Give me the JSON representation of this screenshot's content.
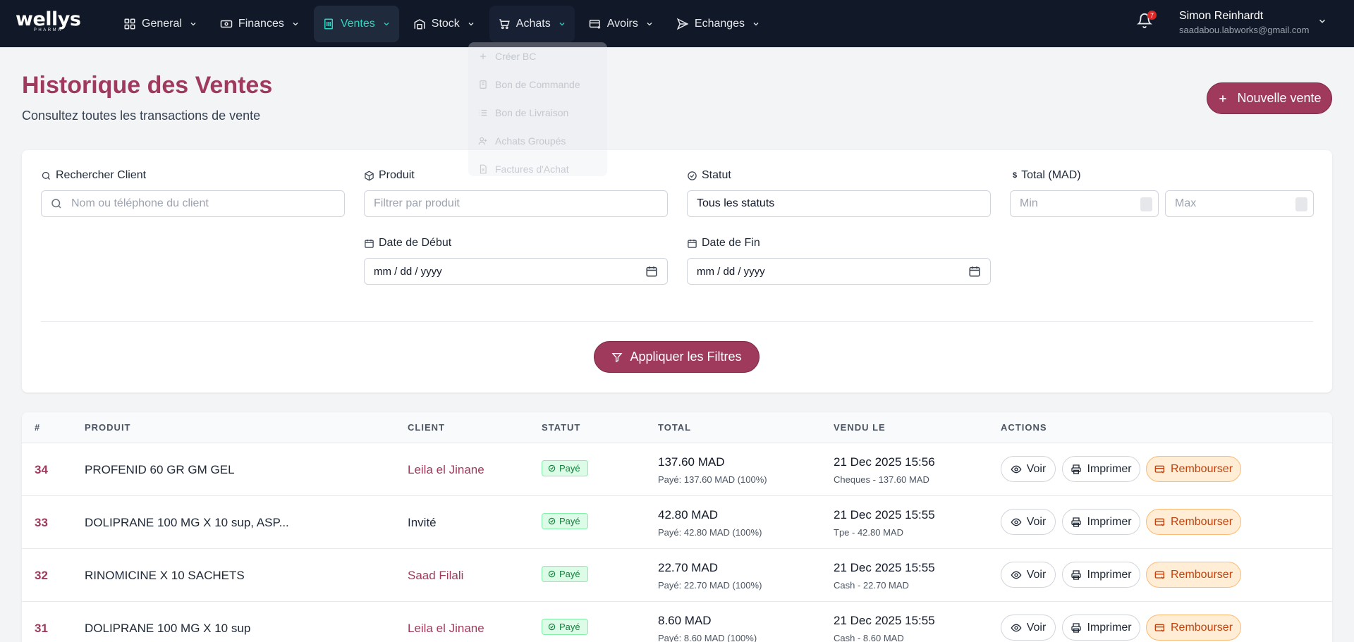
{
  "brand": {
    "name": "wellys",
    "sub": "PHARMA"
  },
  "nav": {
    "items": [
      {
        "label": "General",
        "icon": "grid-icon"
      },
      {
        "label": "Finances",
        "icon": "money-icon"
      },
      {
        "label": "Ventes",
        "icon": "receipt-icon"
      },
      {
        "label": "Stock",
        "icon": "warehouse-icon"
      },
      {
        "label": "Achats",
        "icon": "cart-icon"
      },
      {
        "label": "Avoirs",
        "icon": "credit-note-icon"
      },
      {
        "label": "Echanges",
        "icon": "send-icon"
      }
    ],
    "active": "Ventes",
    "notifications_count": "7",
    "user": {
      "name": "Simon Reinhardt",
      "email": "saadabou.labworks@gmail.com"
    }
  },
  "achats_dropdown": {
    "items": [
      {
        "label": "Créer BC"
      },
      {
        "label": "Bon de Commande"
      },
      {
        "label": "Bon de Livraison"
      },
      {
        "label": "Achats Groupés"
      },
      {
        "label": "Factures d'Achat"
      }
    ]
  },
  "header": {
    "title": "Historique des Ventes",
    "subtitle": "Consultez toutes les transactions de vente",
    "new_sale_label": "Nouvelle vente"
  },
  "filters": {
    "client": {
      "label": "Rechercher Client",
      "placeholder": "Nom ou téléphone du client"
    },
    "produit": {
      "label": "Produit",
      "placeholder": "Filtrer par produit"
    },
    "statut": {
      "label": "Statut",
      "value": "Tous les statuts"
    },
    "total": {
      "label": "Total (MAD)",
      "min_placeholder": "Min",
      "max_placeholder": "Max"
    },
    "date_debut": {
      "label": "Date de Début",
      "placeholder": "mm / dd / yyyy"
    },
    "date_fin": {
      "label": "Date de Fin",
      "placeholder": "mm / dd / yyyy"
    },
    "apply_label": "Appliquer les Filtres"
  },
  "table": {
    "columns": [
      "#",
      "PRODUIT",
      "CLIENT",
      "STATUT",
      "TOTAL",
      "VENDU LE",
      "ACTIONS"
    ],
    "actions": {
      "view": "Voir",
      "print": "Imprimer",
      "refund": "Rembourser"
    },
    "rows": [
      {
        "id": "34",
        "produit": "PROFENID 60 GR GM GEL",
        "client": "Leila el Jinane",
        "statut": "Payé",
        "total": "137.60 MAD",
        "paid": "Payé: 137.60 MAD (100%)",
        "date": "21 Dec 2025 15:56",
        "payment": "Cheques - 137.60 MAD"
      },
      {
        "id": "33",
        "produit": "DOLIPRANE 100 MG X 10 sup, ASP...",
        "client": "Invité",
        "statut": "Payé",
        "total": "42.80 MAD",
        "paid": "Payé: 42.80 MAD (100%)",
        "date": "21 Dec 2025 15:55",
        "payment": "Tpe - 42.80 MAD"
      },
      {
        "id": "32",
        "produit": "RINOMICINE X 10 SACHETS",
        "client": "Saad Filali",
        "statut": "Payé",
        "total": "22.70 MAD",
        "paid": "Payé: 22.70 MAD (100%)",
        "date": "21 Dec 2025 15:55",
        "payment": "Cash - 22.70 MAD"
      },
      {
        "id": "31",
        "produit": "DOLIPRANE 100 MG X 10 sup",
        "client": "Leila el Jinane",
        "statut": "Payé",
        "total": "8.60 MAD",
        "paid": "Payé: 8.60 MAD (100%)",
        "date": "21 Dec 2025 15:55",
        "payment": "Cash - 8.60 MAD"
      }
    ]
  },
  "colors": {
    "nav_bg": "#111827",
    "accent": "#9f3a5d",
    "active_nav": "#2dd4bf",
    "paid_badge": "#15803d",
    "refund": "#c2410c"
  }
}
